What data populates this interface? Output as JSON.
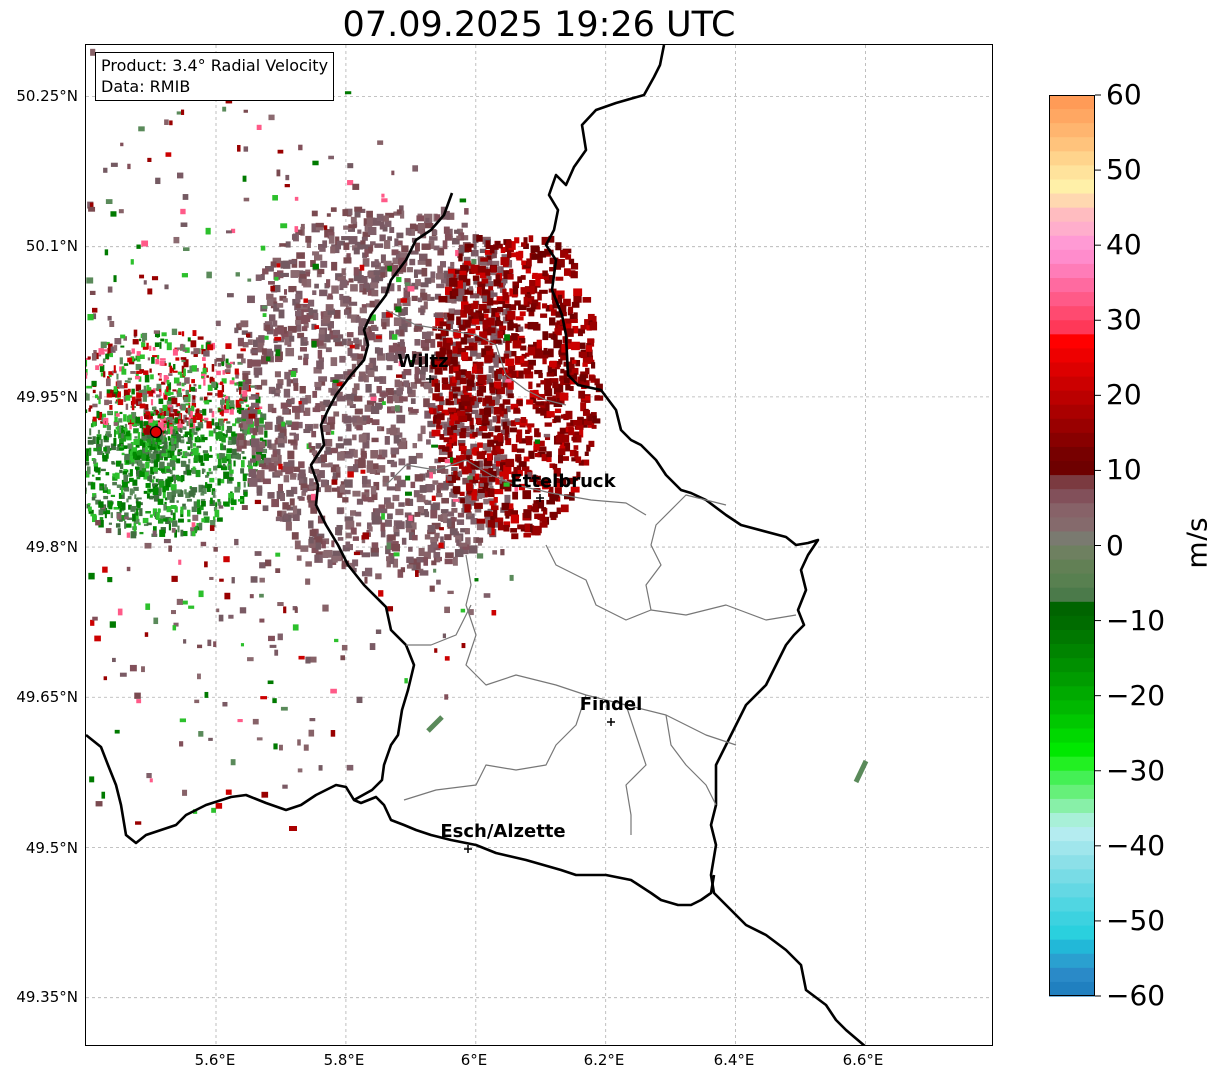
{
  "title": "07.09.2025 19:26 UTC",
  "info_box": {
    "product": "Product: 3.4° Radial Velocity",
    "data_source": "Data: RMIB"
  },
  "axes": {
    "lat_ticks": [
      "50.25°N",
      "50.1°N",
      "49.95°N",
      "49.8°N",
      "49.65°N",
      "49.5°N",
      "49.35°N"
    ],
    "lon_ticks": [
      "5.6°E",
      "5.8°E",
      "6°E",
      "6.2°E",
      "6.4°E",
      "6.6°E"
    ]
  },
  "cities": [
    {
      "name": "Wiltz"
    },
    {
      "name": "Ettelbruck"
    },
    {
      "name": "Findel"
    },
    {
      "name": "Esch/Alzette"
    }
  ],
  "colorbar": {
    "unit": "m/s",
    "ticks": [
      "60",
      "50",
      "40",
      "30",
      "20",
      "10",
      "0",
      "−10",
      "−20",
      "−30",
      "−40",
      "−50",
      "−60"
    ],
    "colors_top_to_bottom": [
      "#ff9b57",
      "#ffa762",
      "#ffb56f",
      "#ffc37c",
      "#ffd48c",
      "#ffe39c",
      "#fff0a8",
      "#ffd8b0",
      "#ffbcc0",
      "#ffaecc",
      "#ff9ad4",
      "#ff8ccc",
      "#ff7cb8",
      "#ff6aa0",
      "#ff5a88",
      "#ff4a70",
      "#ff3858",
      "#ff0000",
      "#ee0000",
      "#dd0000",
      "#cc0000",
      "#bb0000",
      "#aa0000",
      "#990000",
      "#880000",
      "#770000",
      "#6e0000",
      "#7b3a40",
      "#82505a",
      "#876268",
      "#856a6c",
      "#7a7a70",
      "#6e8060",
      "#628055",
      "#588050",
      "#4b7a4a",
      "#006400",
      "#006c00",
      "#007800",
      "#008400",
      "#009000",
      "#009c00",
      "#00aa00",
      "#00b800",
      "#00c800",
      "#00d800",
      "#00e800",
      "#22f022",
      "#44f055",
      "#66f07a",
      "#88f0a8",
      "#a8f0d8",
      "#b4ecf0",
      "#a0e6ec",
      "#8ce0e8",
      "#78dce6",
      "#64d8e4",
      "#50d6e2",
      "#3cd2e0",
      "#2ad0de",
      "#22b8d8",
      "#2aa0d0",
      "#2a8ac8",
      "#2080c0"
    ]
  }
}
